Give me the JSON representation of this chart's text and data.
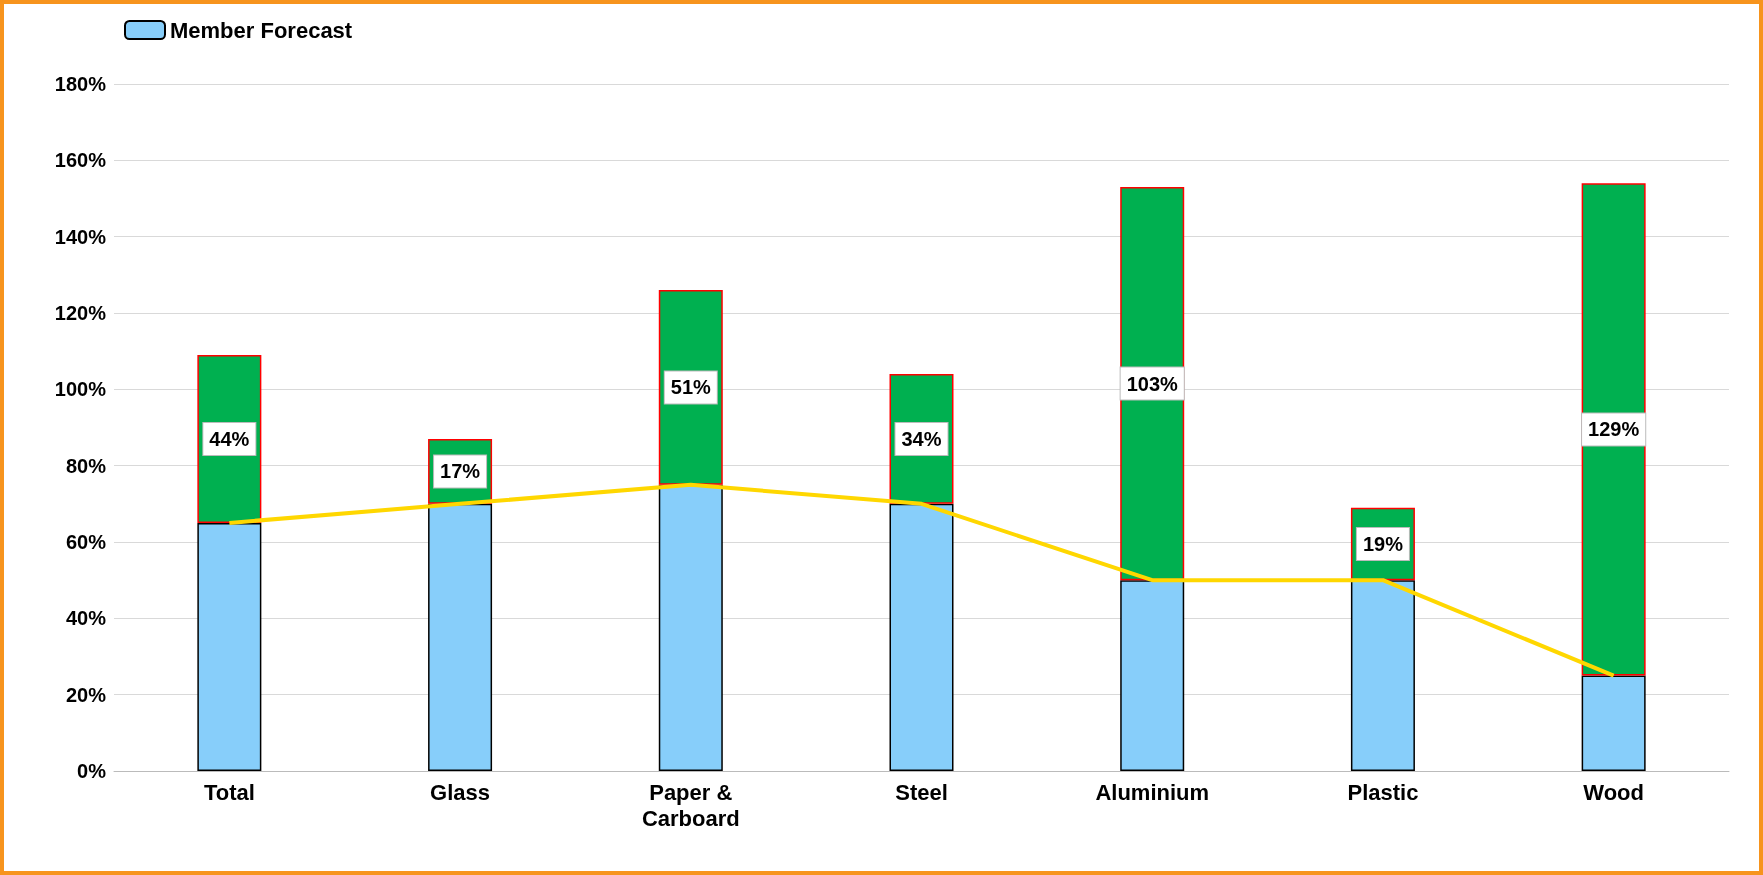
{
  "chart_data": {
    "type": "bar",
    "stacked": true,
    "categories": [
      "Total",
      "Glass",
      "Paper &\nCarboard",
      "Steel",
      "Aluminium",
      "Plastic",
      "Wood"
    ],
    "series": [
      {
        "name": "Member Forecast",
        "color": "#87cefa",
        "values": [
          65,
          70,
          75,
          70,
          50,
          50,
          25
        ]
      },
      {
        "color": "#00b050",
        "values": [
          44,
          17,
          51,
          34,
          103,
          19,
          129
        ],
        "value_labels": [
          "44%",
          "17%",
          "51%",
          "34%",
          "103%",
          "19%",
          "129%"
        ]
      },
      {
        "type": "line",
        "color": "#ffd700",
        "values": [
          65,
          70,
          75,
          70,
          50,
          50,
          25
        ],
        "marker": "none"
      }
    ],
    "ylim": [
      0,
      180
    ],
    "yticks": [
      {
        "value": 0,
        "label": "0%"
      },
      {
        "value": 20,
        "label": "20%"
      },
      {
        "value": 40,
        "label": "40%"
      },
      {
        "value": 60,
        "label": "60%"
      },
      {
        "value": 80,
        "label": "80%"
      },
      {
        "value": 100,
        "label": "100%"
      },
      {
        "value": 120,
        "label": "120%"
      },
      {
        "value": 140,
        "label": "140%"
      },
      {
        "value": 160,
        "label": "160%"
      },
      {
        "value": 180,
        "label": "180%"
      }
    ],
    "grid": "y",
    "legend": "top left"
  }
}
